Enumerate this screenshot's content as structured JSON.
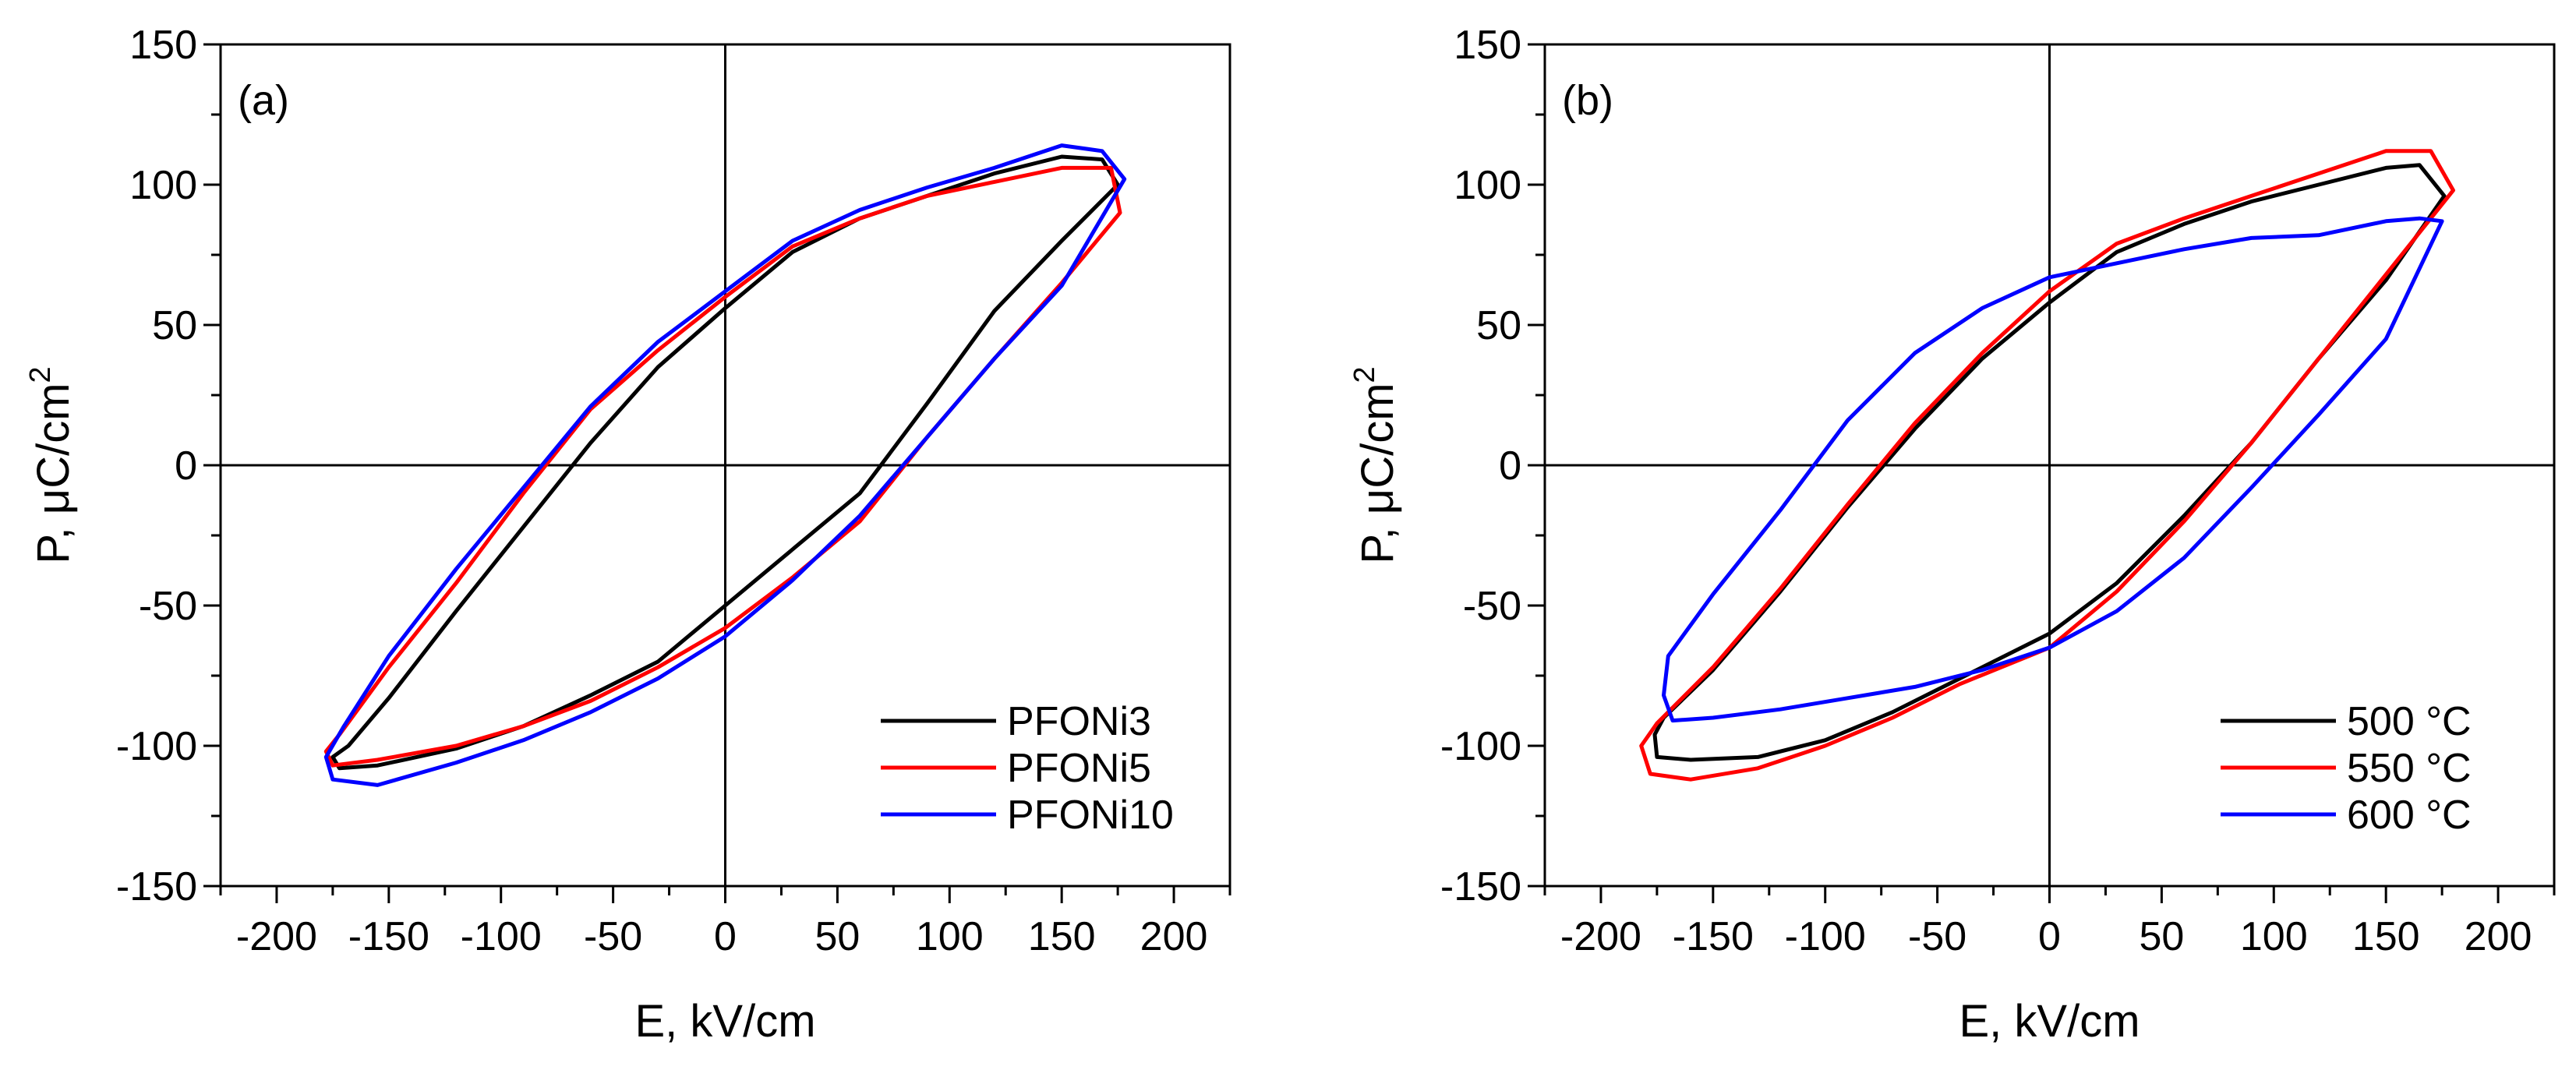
{
  "chart_data": [
    {
      "type": "line",
      "panel_label": "(a)",
      "xlabel": "E, kV/cm",
      "ylabel": "P, μC/cm",
      "ylabel_sup": "2",
      "xlim": [
        -225,
        225
      ],
      "ylim": [
        -150,
        150
      ],
      "xticks": [
        -200,
        -150,
        -100,
        -50,
        0,
        50,
        100,
        150,
        200
      ],
      "yticks": [
        -150,
        -100,
        -50,
        0,
        50,
        100,
        150
      ],
      "legend_position": "bottom-right",
      "series": [
        {
          "name": "PFONi3",
          "color": "#000000",
          "x": [
            175,
            168,
            150,
            120,
            90,
            60,
            30,
            0,
            -30,
            -60,
            -90,
            -120,
            -150,
            -168,
            -175,
            -172,
            -155,
            -120,
            -90,
            -60,
            -30,
            0,
            30,
            60,
            90,
            120,
            150,
            175
          ],
          "y": [
            100,
            109,
            110,
            104,
            96,
            88,
            76,
            56,
            35,
            8,
            -22,
            -52,
            -83,
            -100,
            -104,
            -108,
            -107,
            -101,
            -93,
            -82,
            -70,
            -50,
            -30,
            -10,
            22,
            55,
            80,
            100
          ]
        },
        {
          "name": "PFONi5",
          "color": "#ff0000",
          "x": [
            176,
            172,
            150,
            120,
            90,
            60,
            30,
            0,
            -30,
            -60,
            -90,
            -120,
            -150,
            -172,
            -178,
            -175,
            -155,
            -120,
            -90,
            -60,
            -30,
            0,
            30,
            60,
            90,
            120,
            150,
            176
          ],
          "y": [
            90,
            106,
            106,
            101,
            96,
            88,
            78,
            60,
            41,
            20,
            -10,
            -42,
            -72,
            -96,
            -102,
            -107,
            -105,
            -100,
            -93,
            -84,
            -72,
            -58,
            -40,
            -20,
            10,
            38,
            65,
            90
          ]
        },
        {
          "name": "PFONi10",
          "color": "#0000ff",
          "x": [
            178,
            168,
            150,
            120,
            90,
            60,
            30,
            0,
            -30,
            -60,
            -90,
            -120,
            -150,
            -170,
            -178,
            -175,
            -155,
            -120,
            -90,
            -60,
            -30,
            0,
            30,
            60,
            90,
            120,
            150,
            178
          ],
          "y": [
            102,
            112,
            114,
            106,
            99,
            91,
            80,
            62,
            44,
            21,
            -8,
            -37,
            -68,
            -93,
            -104,
            -112,
            -114,
            -106,
            -98,
            -88,
            -76,
            -61,
            -41,
            -18,
            10,
            38,
            64,
            102
          ]
        }
      ]
    },
    {
      "type": "line",
      "panel_label": "(b)",
      "xlabel": "E, kV/cm",
      "ylabel": "P, μC/cm",
      "ylabel_sup": "2",
      "xlim": [
        -225,
        225
      ],
      "ylim": [
        -150,
        150
      ],
      "xticks": [
        -200,
        -150,
        -100,
        -50,
        0,
        50,
        100,
        150,
        200
      ],
      "yticks": [
        -150,
        -100,
        -50,
        0,
        50,
        100,
        150
      ],
      "legend_position": "bottom-right",
      "series": [
        {
          "name": "500 °C",
          "color": "#000000",
          "x": [
            176,
            165,
            150,
            120,
            90,
            60,
            30,
            0,
            -30,
            -60,
            -90,
            -120,
            -150,
            -172,
            -176,
            -175,
            -160,
            -130,
            -100,
            -70,
            -40,
            0,
            30,
            60,
            90,
            120,
            150,
            176
          ],
          "y": [
            96,
            107,
            106,
            100,
            94,
            86,
            76,
            58,
            38,
            13,
            -15,
            -45,
            -73,
            -90,
            -96,
            -104,
            -105,
            -104,
            -98,
            -88,
            -76,
            -60,
            -42,
            -18,
            8,
            38,
            66,
            96
          ]
        },
        {
          "name": "550 °C",
          "color": "#ff0000",
          "x": [
            180,
            170,
            150,
            120,
            90,
            60,
            30,
            0,
            -30,
            -60,
            -90,
            -120,
            -150,
            -175,
            -182,
            -178,
            -160,
            -130,
            -100,
            -70,
            -40,
            0,
            30,
            60,
            90,
            120,
            150,
            180
          ],
          "y": [
            98,
            112,
            112,
            104,
            96,
            88,
            79,
            62,
            40,
            15,
            -14,
            -44,
            -72,
            -92,
            -100,
            -110,
            -112,
            -108,
            -100,
            -90,
            -78,
            -65,
            -45,
            -20,
            8,
            38,
            68,
            98
          ]
        },
        {
          "name": "600 °C",
          "color": "#0000ff",
          "x": [
            175,
            165,
            150,
            120,
            90,
            60,
            30,
            0,
            -30,
            -60,
            -90,
            -120,
            -150,
            -170,
            -172,
            -168,
            -150,
            -120,
            -90,
            -60,
            -30,
            0,
            30,
            60,
            90,
            120,
            150,
            175
          ],
          "y": [
            87,
            88,
            87,
            82,
            81,
            77,
            72,
            67,
            56,
            40,
            16,
            -16,
            -46,
            -68,
            -82,
            -91,
            -90,
            -87,
            -83,
            -79,
            -73,
            -65,
            -52,
            -33,
            -8,
            18,
            45,
            87
          ]
        }
      ]
    }
  ]
}
